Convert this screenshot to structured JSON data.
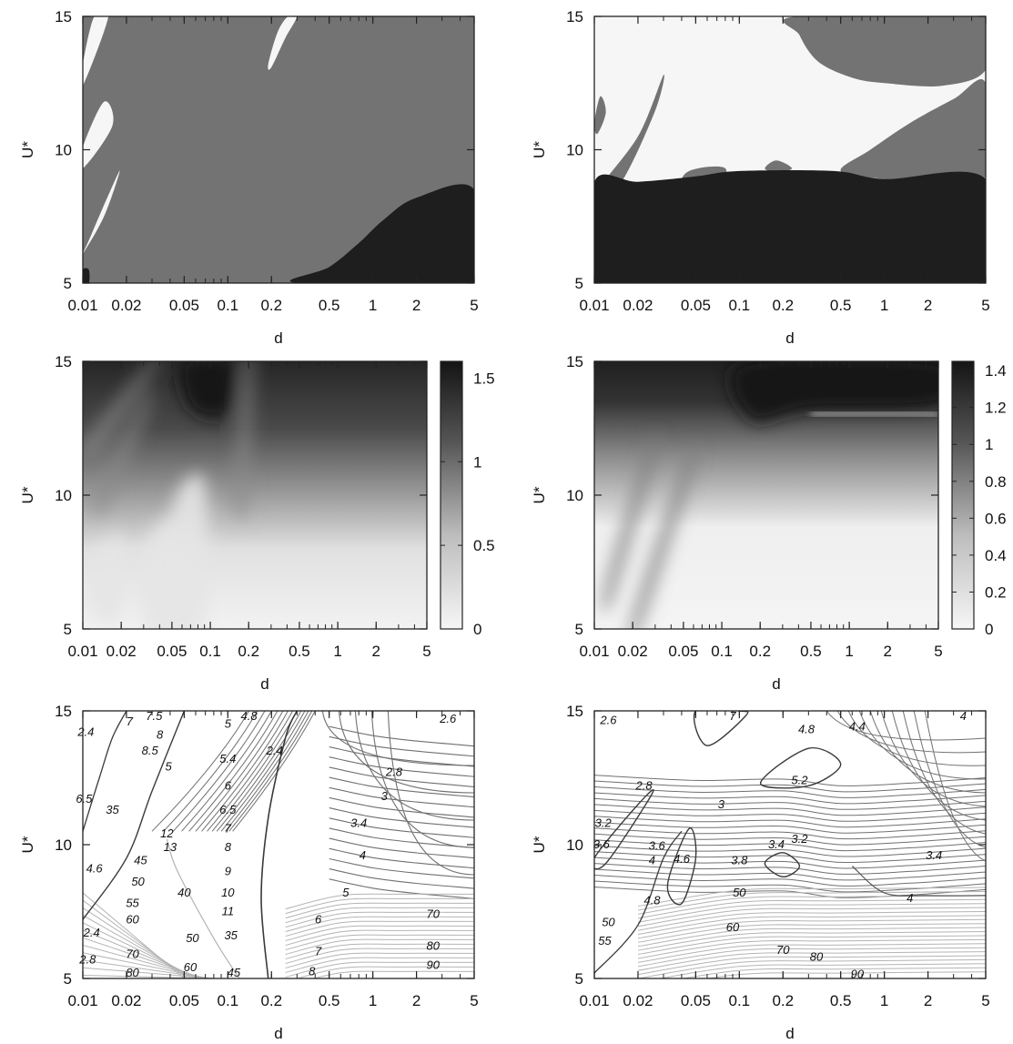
{
  "colors": {
    "dark": "#1e1e1e",
    "mid": "#737373",
    "light": "#f6f6f6",
    "contour_dark": "#707070",
    "contour_light": "#b4b4b4",
    "axis": "#222222"
  },
  "chart_data": [
    {
      "id": "panel-top-left",
      "type": "heatmap",
      "variant": "categorical-map",
      "xlabel": "d",
      "ylabel": "U*",
      "xscale": "log",
      "xlim": [
        0.01,
        5
      ],
      "ylim": [
        5,
        15
      ],
      "xticks": [
        0.01,
        0.02,
        0.05,
        0.1,
        0.2,
        0.5,
        1,
        2,
        5
      ],
      "xtick_labels": [
        "0.01",
        "0.02",
        "0.05",
        "0.1",
        "0.2",
        "0.5",
        "1",
        "2",
        "5"
      ],
      "yticks": [
        5,
        10,
        15
      ],
      "ytick_labels": [
        "5",
        "10",
        "15"
      ],
      "regions": [
        {
          "level": "light",
          "polygon": [
            [
              0.01,
              13.2
            ],
            [
              0.012,
              15
            ],
            [
              0.015,
              15
            ],
            [
              0.01,
              12.4
            ]
          ]
        },
        {
          "level": "light",
          "polygon": [
            [
              0.01,
              10.1
            ],
            [
              0.014,
              11.8
            ],
            [
              0.016,
              10.9
            ],
            [
              0.01,
              9.3
            ]
          ]
        },
        {
          "level": "light",
          "polygon": [
            [
              0.01,
              6.1
            ],
            [
              0.014,
              7.5
            ],
            [
              0.018,
              9.2
            ],
            [
              0.015,
              8.3
            ],
            [
              0.011,
              6.6
            ]
          ]
        },
        {
          "level": "light",
          "polygon": [
            [
              0.19,
              13.2
            ],
            [
              0.22,
              14.4
            ],
            [
              0.26,
              15
            ],
            [
              0.3,
              15
            ],
            [
              0.25,
              14.2
            ],
            [
              0.2,
              13.1
            ]
          ]
        },
        {
          "level": "dark",
          "polygon": [
            [
              0.01,
              5.5
            ],
            [
              0.011,
              5.5
            ],
            [
              0.011,
              5
            ],
            [
              0.01,
              5
            ]
          ]
        },
        {
          "level": "dark",
          "polygon": [
            [
              0.3,
              5
            ],
            [
              0.5,
              5.6
            ],
            [
              0.8,
              6.5
            ],
            [
              1.2,
              7.4
            ],
            [
              2,
              8.2
            ],
            [
              5,
              8.5
            ],
            [
              5,
              5
            ]
          ]
        }
      ]
    },
    {
      "id": "panel-top-right",
      "type": "heatmap",
      "variant": "categorical-map",
      "xlabel": "d",
      "ylabel": "U*",
      "xscale": "log",
      "xlim": [
        0.01,
        5
      ],
      "ylim": [
        5,
        15
      ],
      "xticks": [
        0.01,
        0.02,
        0.05,
        0.1,
        0.2,
        0.5,
        1,
        2,
        5
      ],
      "xtick_labels": [
        "0.01",
        "0.02",
        "0.05",
        "0.1",
        "0.2",
        "0.5",
        "1",
        "2",
        "5"
      ],
      "yticks": [
        5,
        10,
        15
      ],
      "ytick_labels": [
        "5",
        "10",
        "15"
      ],
      "regions": [
        {
          "level": "mid",
          "polygon": [
            [
              0.25,
              15
            ],
            [
              0.26,
              14.3
            ],
            [
              0.35,
              13.3
            ],
            [
              0.6,
              12.7
            ],
            [
              1,
              12.5
            ],
            [
              2.5,
              12.4
            ],
            [
              5,
              13
            ],
            [
              5,
              15
            ]
          ]
        },
        {
          "level": "mid",
          "polygon": [
            [
              0.3,
              15
            ],
            [
              0.45,
              15
            ],
            [
              0.35,
              14.3
            ],
            [
              0.3,
              14.5
            ]
          ]
        },
        {
          "level": "mid",
          "polygon": [
            [
              0.5,
              9.2
            ],
            [
              0.8,
              10
            ],
            [
              1.5,
              11
            ],
            [
              3,
              11.9
            ],
            [
              5,
              12.5
            ],
            [
              5,
              9.0
            ],
            [
              2,
              8.8
            ],
            [
              1,
              8.9
            ]
          ]
        },
        {
          "level": "mid",
          "polygon": [
            [
              0.01,
              8.3
            ],
            [
              0.02,
              10.5
            ],
            [
              0.03,
              12.8
            ],
            [
              0.026,
              11.4
            ],
            [
              0.015,
              8.7
            ]
          ]
        },
        {
          "level": "mid",
          "polygon": [
            [
              0.01,
              7.6
            ],
            [
              0.016,
              9.5
            ],
            [
              0.02,
              10.3
            ],
            [
              0.014,
              8.6
            ]
          ]
        },
        {
          "level": "mid",
          "polygon": [
            [
              0.04,
              8.5
            ],
            [
              0.055,
              7.4
            ],
            [
              0.07,
              8.3
            ],
            [
              0.08,
              9.3
            ],
            [
              0.045,
              9.2
            ]
          ]
        },
        {
          "level": "mid",
          "polygon": [
            [
              0.15,
              9.3
            ],
            [
              0.18,
              9.6
            ],
            [
              0.23,
              9.3
            ],
            [
              0.18,
              9.15
            ]
          ]
        },
        {
          "level": "mid",
          "polygon": [
            [
              0.01,
              11.0
            ],
            [
              0.011,
              12.0
            ],
            [
              0.012,
              11.4
            ],
            [
              0.0105,
              10.6
            ]
          ]
        },
        {
          "level": "dark",
          "polygon": [
            [
              0.01,
              5
            ],
            [
              5,
              5
            ],
            [
              5,
              8.9
            ],
            [
              1,
              8.9
            ],
            [
              0.45,
              9.2
            ],
            [
              0.1,
              9.2
            ],
            [
              0.05,
              9.0
            ],
            [
              0.02,
              8.8
            ],
            [
              0.01,
              8.8
            ]
          ]
        }
      ]
    },
    {
      "id": "panel-middle-left",
      "type": "heatmap",
      "variant": "continuous-field",
      "xlabel": "d",
      "ylabel": "U*",
      "xscale": "log",
      "xlim": [
        0.01,
        5
      ],
      "ylim": [
        5,
        15
      ],
      "xticks": [
        0.01,
        0.02,
        0.05,
        0.1,
        0.2,
        0.5,
        1,
        2,
        5
      ],
      "xtick_labels": [
        "0.01",
        "0.02",
        "0.05",
        "0.1",
        "0.2",
        "0.5",
        "1",
        "2",
        "5"
      ],
      "yticks": [
        5,
        10,
        15
      ],
      "ytick_labels": [
        "5",
        "10",
        "15"
      ],
      "colorbar": {
        "min": 0,
        "max": 1.6,
        "ticks": [
          0,
          0.5,
          1,
          1.5
        ],
        "tick_labels": [
          "0",
          "0.5",
          "1",
          "1.5"
        ]
      }
    },
    {
      "id": "panel-middle-right",
      "type": "heatmap",
      "variant": "continuous-field",
      "xlabel": "d",
      "ylabel": "U*",
      "xscale": "log",
      "xlim": [
        0.01,
        5
      ],
      "ylim": [
        5,
        15
      ],
      "xticks": [
        0.01,
        0.02,
        0.05,
        0.1,
        0.2,
        0.5,
        1,
        2,
        5
      ],
      "xtick_labels": [
        "0.01",
        "0.02",
        "0.05",
        "0.1",
        "0.2",
        "0.5",
        "1",
        "2",
        "5"
      ],
      "yticks": [
        5,
        10,
        15
      ],
      "ytick_labels": [
        "5",
        "10",
        "15"
      ],
      "colorbar": {
        "min": 0,
        "max": 1.45,
        "ticks": [
          0,
          0.2,
          0.4,
          0.6,
          0.8,
          1,
          1.2,
          1.4
        ],
        "tick_labels": [
          "0",
          "0.2",
          "0.4",
          "0.6",
          "0.8",
          "1",
          "1.2",
          "1.4"
        ]
      }
    },
    {
      "id": "panel-bottom-left",
      "type": "contour",
      "xlabel": "d",
      "ylabel": "U*",
      "xscale": "log",
      "xlim": [
        0.01,
        5
      ],
      "ylim": [
        5,
        15
      ],
      "xticks": [
        0.01,
        0.02,
        0.05,
        0.1,
        0.2,
        0.5,
        1,
        2,
        5
      ],
      "xtick_labels": [
        "0.01",
        "0.02",
        "0.05",
        "0.1",
        "0.2",
        "0.5",
        "1",
        "2",
        "5"
      ],
      "yticks": [
        5,
        10,
        15
      ],
      "ytick_labels": [
        "5",
        "10",
        "15"
      ],
      "contour_labels": [
        {
          "text": "2.4",
          "x": 0.0105,
          "y": 14.2
        },
        {
          "text": "7",
          "x": 0.021,
          "y": 14.6
        },
        {
          "text": "7.5",
          "x": 0.031,
          "y": 14.8
        },
        {
          "text": "8",
          "x": 0.034,
          "y": 14.1
        },
        {
          "text": "8.5",
          "x": 0.029,
          "y": 13.5
        },
        {
          "text": "5",
          "x": 0.039,
          "y": 12.9
        },
        {
          "text": "4.8",
          "x": 0.14,
          "y": 14.8
        },
        {
          "text": "5",
          "x": 0.1,
          "y": 14.5
        },
        {
          "text": "2.6",
          "x": 3.3,
          "y": 14.7
        },
        {
          "text": "5.4",
          "x": 0.1,
          "y": 13.2
        },
        {
          "text": "2.4",
          "x": 0.21,
          "y": 13.5
        },
        {
          "text": "2.8",
          "x": 1.4,
          "y": 12.7
        },
        {
          "text": "6",
          "x": 0.1,
          "y": 12.2
        },
        {
          "text": "3",
          "x": 1.2,
          "y": 11.8
        },
        {
          "text": "6.5",
          "x": 0.1,
          "y": 11.3
        },
        {
          "text": "7",
          "x": 0.1,
          "y": 10.6
        },
        {
          "text": "3.4",
          "x": 0.8,
          "y": 10.8
        },
        {
          "text": "6.5",
          "x": 0.0102,
          "y": 11.7
        },
        {
          "text": "35",
          "x": 0.016,
          "y": 11.3
        },
        {
          "text": "12",
          "x": 0.038,
          "y": 10.4
        },
        {
          "text": "13",
          "x": 0.04,
          "y": 9.9
        },
        {
          "text": "8",
          "x": 0.1,
          "y": 9.9
        },
        {
          "text": "4",
          "x": 0.85,
          "y": 9.6
        },
        {
          "text": "45",
          "x": 0.025,
          "y": 9.4
        },
        {
          "text": "4.6",
          "x": 0.012,
          "y": 9.1
        },
        {
          "text": "9",
          "x": 0.1,
          "y": 9.0
        },
        {
          "text": "50",
          "x": 0.024,
          "y": 8.6
        },
        {
          "text": "10",
          "x": 0.1,
          "y": 8.2
        },
        {
          "text": "5",
          "x": 0.65,
          "y": 8.2
        },
        {
          "text": "40",
          "x": 0.05,
          "y": 8.2
        },
        {
          "text": "55",
          "x": 0.022,
          "y": 7.8
        },
        {
          "text": "11",
          "x": 0.1,
          "y": 7.5
        },
        {
          "text": "60",
          "x": 0.022,
          "y": 7.2
        },
        {
          "text": "6",
          "x": 0.42,
          "y": 7.2
        },
        {
          "text": "70",
          "x": 2.6,
          "y": 7.4
        },
        {
          "text": "2.4",
          "x": 0.0115,
          "y": 6.7
        },
        {
          "text": "50",
          "x": 0.057,
          "y": 6.5
        },
        {
          "text": "35",
          "x": 0.105,
          "y": 6.6
        },
        {
          "text": "80",
          "x": 2.6,
          "y": 6.2
        },
        {
          "text": "7",
          "x": 0.42,
          "y": 6.0
        },
        {
          "text": "70",
          "x": 0.022,
          "y": 5.9
        },
        {
          "text": "2.8",
          "x": 0.0108,
          "y": 5.7
        },
        {
          "text": "60",
          "x": 0.055,
          "y": 5.4
        },
        {
          "text": "90",
          "x": 2.6,
          "y": 5.5
        },
        {
          "text": "45",
          "x": 0.11,
          "y": 5.2
        },
        {
          "text": "80",
          "x": 0.022,
          "y": 5.2
        },
        {
          "text": "8",
          "x": 0.38,
          "y": 5.25
        }
      ]
    },
    {
      "id": "panel-bottom-right",
      "type": "contour",
      "xlabel": "d",
      "ylabel": "U*",
      "xscale": "log",
      "xlim": [
        0.01,
        5
      ],
      "ylim": [
        5,
        15
      ],
      "xticks": [
        0.01,
        0.02,
        0.05,
        0.1,
        0.2,
        0.5,
        1,
        2,
        5
      ],
      "xtick_labels": [
        "0.01",
        "0.02",
        "0.05",
        "0.1",
        "0.2",
        "0.5",
        "1",
        "2",
        "5"
      ],
      "yticks": [
        5,
        10,
        15
      ],
      "ytick_labels": [
        "5",
        "10",
        "15"
      ],
      "contour_labels": [
        {
          "text": "2.6",
          "x": 0.0125,
          "y": 14.65
        },
        {
          "text": "7",
          "x": 0.09,
          "y": 14.8
        },
        {
          "text": "4.8",
          "x": 0.29,
          "y": 14.3
        },
        {
          "text": "4.4",
          "x": 0.65,
          "y": 14.4
        },
        {
          "text": "4",
          "x": 3.5,
          "y": 14.8
        },
        {
          "text": "5.2",
          "x": 0.26,
          "y": 12.4
        },
        {
          "text": "2.8",
          "x": 0.022,
          "y": 12.2
        },
        {
          "text": "3",
          "x": 0.075,
          "y": 11.5
        },
        {
          "text": "3.2",
          "x": 0.0115,
          "y": 10.8
        },
        {
          "text": "3.6",
          "x": 0.0112,
          "y": 10.0
        },
        {
          "text": "3.6",
          "x": 0.027,
          "y": 9.95
        },
        {
          "text": "3.4",
          "x": 0.18,
          "y": 10.0
        },
        {
          "text": "3.2",
          "x": 0.26,
          "y": 10.2
        },
        {
          "text": "4",
          "x": 0.025,
          "y": 9.4
        },
        {
          "text": "4.6",
          "x": 0.04,
          "y": 9.45
        },
        {
          "text": "3.8",
          "x": 0.1,
          "y": 9.4
        },
        {
          "text": "3.4",
          "x": 2.2,
          "y": 9.6
        },
        {
          "text": "50",
          "x": 0.1,
          "y": 8.2
        },
        {
          "text": "4",
          "x": 1.5,
          "y": 8.0
        },
        {
          "text": "4.8",
          "x": 0.025,
          "y": 7.9
        },
        {
          "text": "60",
          "x": 0.09,
          "y": 6.9
        },
        {
          "text": "50",
          "x": 0.0125,
          "y": 7.1
        },
        {
          "text": "55",
          "x": 0.0118,
          "y": 6.4
        },
        {
          "text": "70",
          "x": 0.2,
          "y": 6.05
        },
        {
          "text": "80",
          "x": 0.34,
          "y": 5.8
        },
        {
          "text": "90",
          "x": 0.65,
          "y": 5.15
        }
      ]
    }
  ]
}
